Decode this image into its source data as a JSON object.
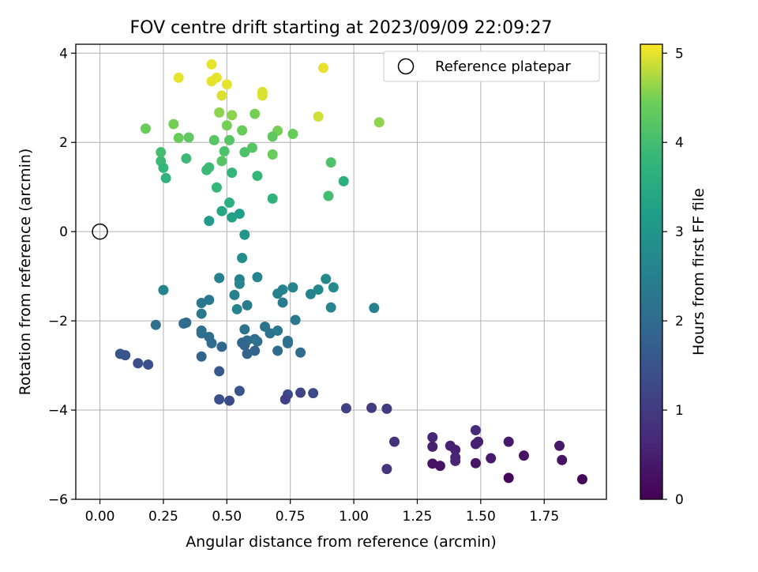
{
  "chart_data": {
    "type": "scatter",
    "title": "FOV centre drift starting at 2023/09/09 22:09:27",
    "xlabel": "Angular distance from reference (arcmin)",
    "ylabel": "Rotation from reference (arcmin)",
    "xlim": [
      -0.095,
      1.995
    ],
    "ylim": [
      -6.0,
      4.2
    ],
    "xticks": [
      "0.00",
      "0.25",
      "0.50",
      "0.75",
      "1.00",
      "1.25",
      "1.50",
      "1.75"
    ],
    "xtick_values": [
      0,
      0.25,
      0.5,
      0.75,
      1.0,
      1.25,
      1.5,
      1.75
    ],
    "yticks": [
      "4",
      "2",
      "0",
      "−2",
      "−4",
      "−6"
    ],
    "ytick_values": [
      4,
      2,
      0,
      -2,
      -4,
      -6
    ],
    "grid": true,
    "legend": {
      "placement": "top-right",
      "entries": [
        "Reference platepar"
      ]
    },
    "reference_point": {
      "x": 0.0,
      "y": 0.0
    },
    "colorbar": {
      "label": "Hours from first FF file",
      "range": [
        0,
        5.1
      ],
      "ticks": [
        "0",
        "1",
        "2",
        "3",
        "4",
        "5"
      ],
      "tick_values": [
        0,
        1,
        2,
        3,
        4,
        5
      ],
      "colormap": "viridis"
    },
    "points": [
      {
        "x": 0.44,
        "y": 3.75,
        "c": 5.0
      },
      {
        "x": 0.31,
        "y": 3.45,
        "c": 5.0
      },
      {
        "x": 0.44,
        "y": 3.37,
        "c": 5.0
      },
      {
        "x": 0.46,
        "y": 3.45,
        "c": 5.0
      },
      {
        "x": 0.5,
        "y": 3.3,
        "c": 5.0
      },
      {
        "x": 0.64,
        "y": 3.13,
        "c": 4.95
      },
      {
        "x": 0.64,
        "y": 3.05,
        "c": 4.95
      },
      {
        "x": 0.48,
        "y": 3.05,
        "c": 4.95
      },
      {
        "x": 0.88,
        "y": 3.67,
        "c": 5.0
      },
      {
        "x": 0.86,
        "y": 2.58,
        "c": 4.9
      },
      {
        "x": 0.47,
        "y": 2.67,
        "c": 4.6
      },
      {
        "x": 0.52,
        "y": 2.61,
        "c": 4.6
      },
      {
        "x": 0.61,
        "y": 2.64,
        "c": 4.5
      },
      {
        "x": 1.1,
        "y": 2.45,
        "c": 4.6
      },
      {
        "x": 0.29,
        "y": 2.41,
        "c": 4.5
      },
      {
        "x": 0.5,
        "y": 2.38,
        "c": 4.5
      },
      {
        "x": 0.18,
        "y": 2.31,
        "c": 4.4
      },
      {
        "x": 0.56,
        "y": 2.27,
        "c": 4.4
      },
      {
        "x": 0.7,
        "y": 2.26,
        "c": 4.5
      },
      {
        "x": 0.76,
        "y": 2.19,
        "c": 4.4
      },
      {
        "x": 0.31,
        "y": 2.1,
        "c": 4.4
      },
      {
        "x": 0.35,
        "y": 2.11,
        "c": 4.3
      },
      {
        "x": 0.45,
        "y": 2.05,
        "c": 4.2
      },
      {
        "x": 0.51,
        "y": 2.05,
        "c": 4.2
      },
      {
        "x": 0.68,
        "y": 2.13,
        "c": 4.3
      },
      {
        "x": 0.6,
        "y": 1.88,
        "c": 4.2
      },
      {
        "x": 0.49,
        "y": 1.8,
        "c": 4.1
      },
      {
        "x": 0.57,
        "y": 1.78,
        "c": 4.1
      },
      {
        "x": 0.24,
        "y": 1.78,
        "c": 4.0
      },
      {
        "x": 0.68,
        "y": 1.73,
        "c": 4.4
      },
      {
        "x": 0.34,
        "y": 1.64,
        "c": 3.9
      },
      {
        "x": 0.24,
        "y": 1.58,
        "c": 3.9
      },
      {
        "x": 0.48,
        "y": 1.58,
        "c": 4.2
      },
      {
        "x": 0.91,
        "y": 1.55,
        "c": 4.1
      },
      {
        "x": 0.43,
        "y": 1.44,
        "c": 3.9
      },
      {
        "x": 0.42,
        "y": 1.38,
        "c": 3.9
      },
      {
        "x": 0.25,
        "y": 1.43,
        "c": 3.8
      },
      {
        "x": 0.52,
        "y": 1.32,
        "c": 3.8
      },
      {
        "x": 0.62,
        "y": 1.25,
        "c": 3.8
      },
      {
        "x": 0.26,
        "y": 1.2,
        "c": 3.7
      },
      {
        "x": 0.96,
        "y": 1.13,
        "c": 3.6
      },
      {
        "x": 0.46,
        "y": 0.99,
        "c": 3.8
      },
      {
        "x": 0.9,
        "y": 0.8,
        "c": 4.0
      },
      {
        "x": 0.68,
        "y": 0.74,
        "c": 3.7
      },
      {
        "x": 0.51,
        "y": 0.65,
        "c": 3.6
      },
      {
        "x": 0.48,
        "y": 0.46,
        "c": 3.4
      },
      {
        "x": 0.55,
        "y": 0.4,
        "c": 3.2
      },
      {
        "x": 0.52,
        "y": 0.32,
        "c": 3.3
      },
      {
        "x": 0.43,
        "y": 0.24,
        "c": 3.1
      },
      {
        "x": 0.57,
        "y": -0.07,
        "c": 3.0
      },
      {
        "x": 0.56,
        "y": -0.59,
        "c": 2.8
      },
      {
        "x": 0.47,
        "y": -1.04,
        "c": 2.5
      },
      {
        "x": 0.55,
        "y": -1.07,
        "c": 2.5
      },
      {
        "x": 0.62,
        "y": -1.02,
        "c": 2.6
      },
      {
        "x": 0.25,
        "y": -1.31,
        "c": 2.6
      },
      {
        "x": 0.55,
        "y": -1.17,
        "c": 2.6
      },
      {
        "x": 0.89,
        "y": -1.06,
        "c": 2.7
      },
      {
        "x": 0.76,
        "y": -1.25,
        "c": 2.6
      },
      {
        "x": 0.72,
        "y": -1.3,
        "c": 2.6
      },
      {
        "x": 0.92,
        "y": -1.25,
        "c": 2.8
      },
      {
        "x": 0.53,
        "y": -1.42,
        "c": 2.5
      },
      {
        "x": 0.7,
        "y": -1.39,
        "c": 2.5
      },
      {
        "x": 0.83,
        "y": -1.4,
        "c": 2.6
      },
      {
        "x": 0.86,
        "y": -1.3,
        "c": 2.7
      },
      {
        "x": 0.43,
        "y": -1.53,
        "c": 2.3
      },
      {
        "x": 0.4,
        "y": -1.6,
        "c": 2.3
      },
      {
        "x": 0.72,
        "y": -1.59,
        "c": 2.4
      },
      {
        "x": 0.58,
        "y": -1.65,
        "c": 2.4
      },
      {
        "x": 0.54,
        "y": -1.74,
        "c": 2.6
      },
      {
        "x": 0.91,
        "y": -1.7,
        "c": 2.6
      },
      {
        "x": 1.08,
        "y": -1.71,
        "c": 2.5
      },
      {
        "x": 0.4,
        "y": -1.84,
        "c": 2.3
      },
      {
        "x": 0.77,
        "y": -1.98,
        "c": 2.3
      },
      {
        "x": 0.22,
        "y": -2.09,
        "c": 2.1
      },
      {
        "x": 0.34,
        "y": -2.04,
        "c": 2.0
      },
      {
        "x": 0.33,
        "y": -2.06,
        "c": 2.0
      },
      {
        "x": 0.65,
        "y": -2.13,
        "c": 2.2
      },
      {
        "x": 0.4,
        "y": -2.22,
        "c": 2.1
      },
      {
        "x": 0.57,
        "y": -2.19,
        "c": 2.2
      },
      {
        "x": 0.7,
        "y": -2.22,
        "c": 2.3
      },
      {
        "x": 0.4,
        "y": -2.28,
        "c": 2.1
      },
      {
        "x": 0.67,
        "y": -2.28,
        "c": 2.2
      },
      {
        "x": 0.43,
        "y": -2.36,
        "c": 2.0
      },
      {
        "x": 0.58,
        "y": -2.44,
        "c": 2.0
      },
      {
        "x": 0.61,
        "y": -2.41,
        "c": 2.0
      },
      {
        "x": 0.62,
        "y": -2.46,
        "c": 2.1
      },
      {
        "x": 0.74,
        "y": -2.45,
        "c": 2.1
      },
      {
        "x": 0.74,
        "y": -2.5,
        "c": 2.1
      },
      {
        "x": 0.44,
        "y": -2.5,
        "c": 2.0
      },
      {
        "x": 0.56,
        "y": -2.49,
        "c": 1.9
      },
      {
        "x": 0.57,
        "y": -2.55,
        "c": 1.9
      },
      {
        "x": 0.48,
        "y": -2.58,
        "c": 1.9
      },
      {
        "x": 0.61,
        "y": -2.67,
        "c": 1.8
      },
      {
        "x": 0.7,
        "y": -2.67,
        "c": 2.0
      },
      {
        "x": 0.79,
        "y": -2.71,
        "c": 2.0
      },
      {
        "x": 0.58,
        "y": -2.74,
        "c": 1.8
      },
      {
        "x": 0.4,
        "y": -2.8,
        "c": 1.8
      },
      {
        "x": 0.08,
        "y": -2.74,
        "c": 1.5
      },
      {
        "x": 0.1,
        "y": -2.77,
        "c": 1.5
      },
      {
        "x": 0.15,
        "y": -2.95,
        "c": 1.4
      },
      {
        "x": 0.19,
        "y": -2.98,
        "c": 1.4
      },
      {
        "x": 0.47,
        "y": -3.13,
        "c": 1.6
      },
      {
        "x": 0.55,
        "y": -3.57,
        "c": 1.5
      },
      {
        "x": 0.74,
        "y": -3.65,
        "c": 1.3
      },
      {
        "x": 0.79,
        "y": -3.61,
        "c": 1.2
      },
      {
        "x": 0.84,
        "y": -3.62,
        "c": 1.3
      },
      {
        "x": 0.47,
        "y": -3.76,
        "c": 1.4
      },
      {
        "x": 0.51,
        "y": -3.79,
        "c": 1.3
      },
      {
        "x": 0.73,
        "y": -3.76,
        "c": 1.1
      },
      {
        "x": 0.97,
        "y": -3.96,
        "c": 1.1
      },
      {
        "x": 1.07,
        "y": -3.95,
        "c": 1.0
      },
      {
        "x": 1.13,
        "y": -3.97,
        "c": 1.0
      },
      {
        "x": 1.16,
        "y": -4.71,
        "c": 0.8
      },
      {
        "x": 1.31,
        "y": -4.61,
        "c": 0.6
      },
      {
        "x": 1.31,
        "y": -4.82,
        "c": 0.5
      },
      {
        "x": 1.38,
        "y": -4.8,
        "c": 0.5
      },
      {
        "x": 1.4,
        "y": -4.89,
        "c": 0.5
      },
      {
        "x": 1.48,
        "y": -4.45,
        "c": 0.7
      },
      {
        "x": 1.48,
        "y": -4.76,
        "c": 0.5
      },
      {
        "x": 1.49,
        "y": -4.71,
        "c": 0.5
      },
      {
        "x": 1.61,
        "y": -4.71,
        "c": 0.4
      },
      {
        "x": 1.81,
        "y": -4.8,
        "c": 0.4
      },
      {
        "x": 1.4,
        "y": -5.06,
        "c": 0.6
      },
      {
        "x": 1.4,
        "y": -5.14,
        "c": 0.6
      },
      {
        "x": 1.54,
        "y": -5.08,
        "c": 0.4
      },
      {
        "x": 1.67,
        "y": -5.02,
        "c": 0.3
      },
      {
        "x": 1.82,
        "y": -5.12,
        "c": 0.3
      },
      {
        "x": 1.31,
        "y": -5.2,
        "c": 0.3
      },
      {
        "x": 1.34,
        "y": -5.25,
        "c": 0.3
      },
      {
        "x": 1.48,
        "y": -5.19,
        "c": 0.3
      },
      {
        "x": 1.13,
        "y": -5.32,
        "c": 0.9
      },
      {
        "x": 1.61,
        "y": -5.52,
        "c": 0.1
      },
      {
        "x": 1.9,
        "y": -5.55,
        "c": 0.1
      }
    ]
  }
}
